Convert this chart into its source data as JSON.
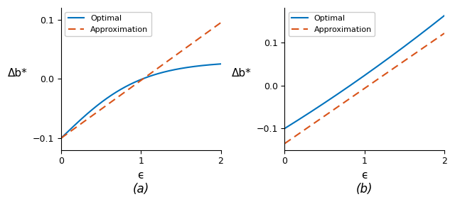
{
  "xlim": [
    0,
    2
  ],
  "xticks": [
    0,
    1,
    2
  ],
  "xlabel": "ϵ",
  "ylabel": "Δb*",
  "legend_entries": [
    "Optimal",
    "Approximation"
  ],
  "optimal_color": "#0072BD",
  "approx_color": "#D95319",
  "line_width": 1.5,
  "subplot_labels": [
    "(a)",
    "(b)"
  ],
  "panel_a": {
    "ylim": [
      -0.12,
      0.12
    ],
    "yticks": [
      -0.1,
      0,
      0.1
    ],
    "approx_slope": 0.0975,
    "approx_intercept": -0.1
  },
  "panel_b": {
    "ylim": [
      -0.15,
      0.18
    ],
    "yticks": [
      -0.1,
      0,
      0.1
    ],
    "approx_slope": 0.128,
    "approx_intercept": -0.135
  }
}
